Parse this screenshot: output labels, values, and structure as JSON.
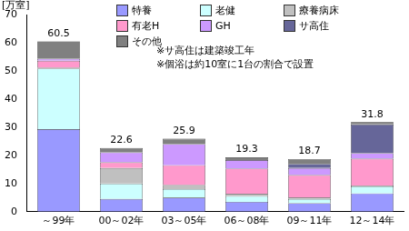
{
  "chart_data": {
    "type": "bar",
    "stacked": true,
    "ylabel": "[万室]",
    "categories": [
      "～99年",
      "00～02年",
      "03～05年",
      "06～08年",
      "09～11年",
      "12～14年"
    ],
    "series": [
      {
        "name": "特養",
        "color": "#9999ff",
        "values": [
          29.3,
          4.5,
          5.0,
          3.5,
          3.0,
          6.5
        ]
      },
      {
        "name": "老健",
        "color": "#ccffff",
        "values": [
          21.5,
          5.5,
          3.0,
          2.0,
          1.5,
          2.5
        ]
      },
      {
        "name": "療養病床",
        "color": "#c0c0c0",
        "values": [
          0.3,
          5.5,
          1.5,
          0.8,
          0.5,
          0.3
        ]
      },
      {
        "name": "有老H",
        "color": "#ff99cc",
        "values": [
          2.5,
          2.0,
          7.0,
          9.0,
          8.0,
          9.5
        ]
      },
      {
        "name": "GH",
        "color": "#cc99ff",
        "values": [
          0.7,
          3.5,
          7.5,
          3.0,
          2.5,
          2.0
        ]
      },
      {
        "name": "サ高住",
        "color": "#666699",
        "values": [
          0,
          0,
          0,
          0,
          1.5,
          10.2
        ]
      },
      {
        "name": "その他",
        "color": "#808080",
        "values": [
          6.2,
          1.6,
          1.9,
          1.0,
          1.7,
          0.8
        ]
      }
    ],
    "totals": [
      60.5,
      22.6,
      25.9,
      19.3,
      18.7,
      31.8
    ],
    "notes": [
      "※サ高住は建築竣工年",
      "※個浴は約10室に1台の割合で設置"
    ],
    "ylim": [
      0,
      70
    ],
    "yticks": [
      0,
      10,
      20,
      30,
      40,
      50,
      60,
      70
    ],
    "grid": false,
    "legend": "top"
  }
}
